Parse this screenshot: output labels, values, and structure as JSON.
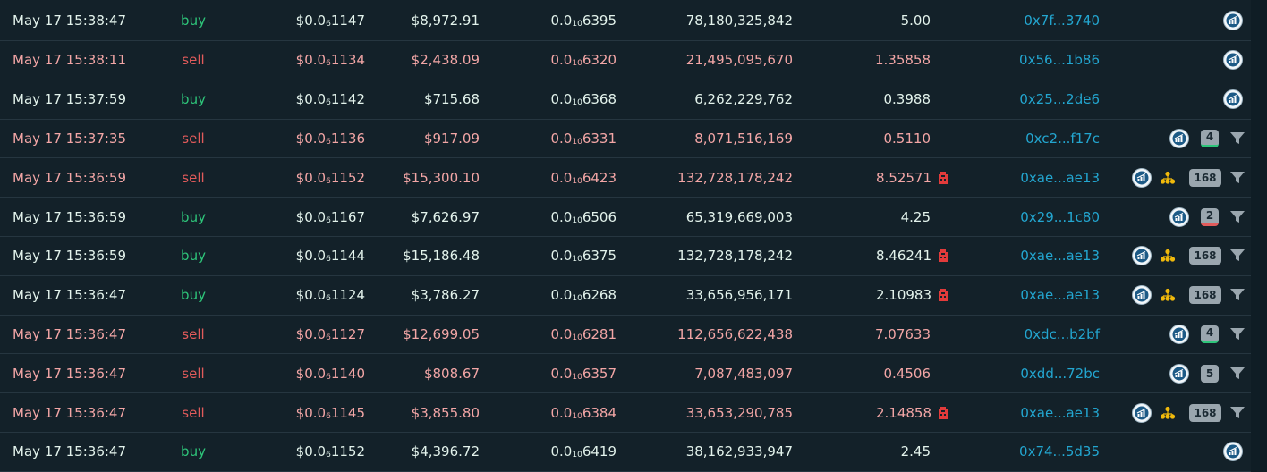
{
  "colors": {
    "background": "#0f1d25",
    "buy": "#2ec67a",
    "sell": "#e25b5b",
    "sell_text": "#f3a6a6",
    "maker_link": "#23a6d0",
    "badge": "#9aa6ae"
  },
  "icons": {
    "app": "chart-logo-icon",
    "nodes": "cluster-nodes-icon",
    "whale": "whale-marker-icon",
    "filter": "filter-funnel-icon"
  },
  "trades": [
    {
      "time": "May 17 15:38:47",
      "type": "buy",
      "price_pre": "$0.0",
      "price_sub": "6",
      "price_post": "1147",
      "usd": "$8,972.91",
      "native_pre": "0.0",
      "native_sub": "10",
      "native_post": "6395",
      "amount": "78,180,325,842",
      "qty": "5.00",
      "whale": false,
      "maker": "0x7f...3740",
      "nodes": false,
      "badge": "",
      "badge_color": "",
      "filter": false
    },
    {
      "time": "May 17 15:38:11",
      "type": "sell",
      "price_pre": "$0.0",
      "price_sub": "6",
      "price_post": "1134",
      "usd": "$2,438.09",
      "native_pre": "0.0",
      "native_sub": "10",
      "native_post": "6320",
      "amount": "21,495,095,670",
      "qty": "1.35858",
      "whale": false,
      "maker": "0x56...1b86",
      "nodes": false,
      "badge": "",
      "badge_color": "",
      "filter": false
    },
    {
      "time": "May 17 15:37:59",
      "type": "buy",
      "price_pre": "$0.0",
      "price_sub": "6",
      "price_post": "1142",
      "usd": "$715.68",
      "native_pre": "0.0",
      "native_sub": "10",
      "native_post": "6368",
      "amount": "6,262,229,762",
      "qty": "0.3988",
      "whale": false,
      "maker": "0x25...2de6",
      "nodes": false,
      "badge": "",
      "badge_color": "",
      "filter": false
    },
    {
      "time": "May 17 15:37:35",
      "type": "sell",
      "price_pre": "$0.0",
      "price_sub": "6",
      "price_post": "1136",
      "usd": "$917.09",
      "native_pre": "0.0",
      "native_sub": "10",
      "native_post": "6331",
      "amount": "8,071,516,169",
      "qty": "0.5110",
      "whale": false,
      "maker": "0xc2...f17c",
      "nodes": false,
      "badge": "4",
      "badge_color": "green",
      "filter": true
    },
    {
      "time": "May 17 15:36:59",
      "type": "sell",
      "price_pre": "$0.0",
      "price_sub": "6",
      "price_post": "1152",
      "usd": "$15,300.10",
      "native_pre": "0.0",
      "native_sub": "10",
      "native_post": "6423",
      "amount": "132,728,178,242",
      "qty": "8.52571",
      "whale": true,
      "maker": "0xae...ae13",
      "nodes": true,
      "badge": "168",
      "badge_color": "",
      "filter": true
    },
    {
      "time": "May 17 15:36:59",
      "type": "buy",
      "price_pre": "$0.0",
      "price_sub": "6",
      "price_post": "1167",
      "usd": "$7,626.97",
      "native_pre": "0.0",
      "native_sub": "10",
      "native_post": "6506",
      "amount": "65,319,669,003",
      "qty": "4.25",
      "whale": false,
      "maker": "0x29...1c80",
      "nodes": false,
      "badge": "2",
      "badge_color": "red",
      "filter": true
    },
    {
      "time": "May 17 15:36:59",
      "type": "buy",
      "price_pre": "$0.0",
      "price_sub": "6",
      "price_post": "1144",
      "usd": "$15,186.48",
      "native_pre": "0.0",
      "native_sub": "10",
      "native_post": "6375",
      "amount": "132,728,178,242",
      "qty": "8.46241",
      "whale": true,
      "maker": "0xae...ae13",
      "nodes": true,
      "badge": "168",
      "badge_color": "",
      "filter": true
    },
    {
      "time": "May 17 15:36:47",
      "type": "buy",
      "price_pre": "$0.0",
      "price_sub": "6",
      "price_post": "1124",
      "usd": "$3,786.27",
      "native_pre": "0.0",
      "native_sub": "10",
      "native_post": "6268",
      "amount": "33,656,956,171",
      "qty": "2.10983",
      "whale": true,
      "maker": "0xae...ae13",
      "nodes": true,
      "badge": "168",
      "badge_color": "",
      "filter": true
    },
    {
      "time": "May 17 15:36:47",
      "type": "sell",
      "price_pre": "$0.0",
      "price_sub": "6",
      "price_post": "1127",
      "usd": "$12,699.05",
      "native_pre": "0.0",
      "native_sub": "10",
      "native_post": "6281",
      "amount": "112,656,622,438",
      "qty": "7.07633",
      "whale": false,
      "maker": "0xdc...b2bf",
      "nodes": false,
      "badge": "4",
      "badge_color": "green",
      "filter": true
    },
    {
      "time": "May 17 15:36:47",
      "type": "sell",
      "price_pre": "$0.0",
      "price_sub": "6",
      "price_post": "1140",
      "usd": "$808.67",
      "native_pre": "0.0",
      "native_sub": "10",
      "native_post": "6357",
      "amount": "7,087,483,097",
      "qty": "0.4506",
      "whale": false,
      "maker": "0xdd...72bc",
      "nodes": false,
      "badge": "5",
      "badge_color": "",
      "filter": true
    },
    {
      "time": "May 17 15:36:47",
      "type": "sell",
      "price_pre": "$0.0",
      "price_sub": "6",
      "price_post": "1145",
      "usd": "$3,855.80",
      "native_pre": "0.0",
      "native_sub": "10",
      "native_post": "6384",
      "amount": "33,653,290,785",
      "qty": "2.14858",
      "whale": true,
      "maker": "0xae...ae13",
      "nodes": true,
      "badge": "168",
      "badge_color": "",
      "filter": true
    },
    {
      "time": "May 17 15:36:47",
      "type": "buy",
      "price_pre": "$0.0",
      "price_sub": "6",
      "price_post": "1152",
      "usd": "$4,396.72",
      "native_pre": "0.0",
      "native_sub": "10",
      "native_post": "6419",
      "amount": "38,162,933,947",
      "qty": "2.45",
      "whale": false,
      "maker": "0x74...5d35",
      "nodes": false,
      "badge": "",
      "badge_color": "",
      "filter": false
    }
  ]
}
